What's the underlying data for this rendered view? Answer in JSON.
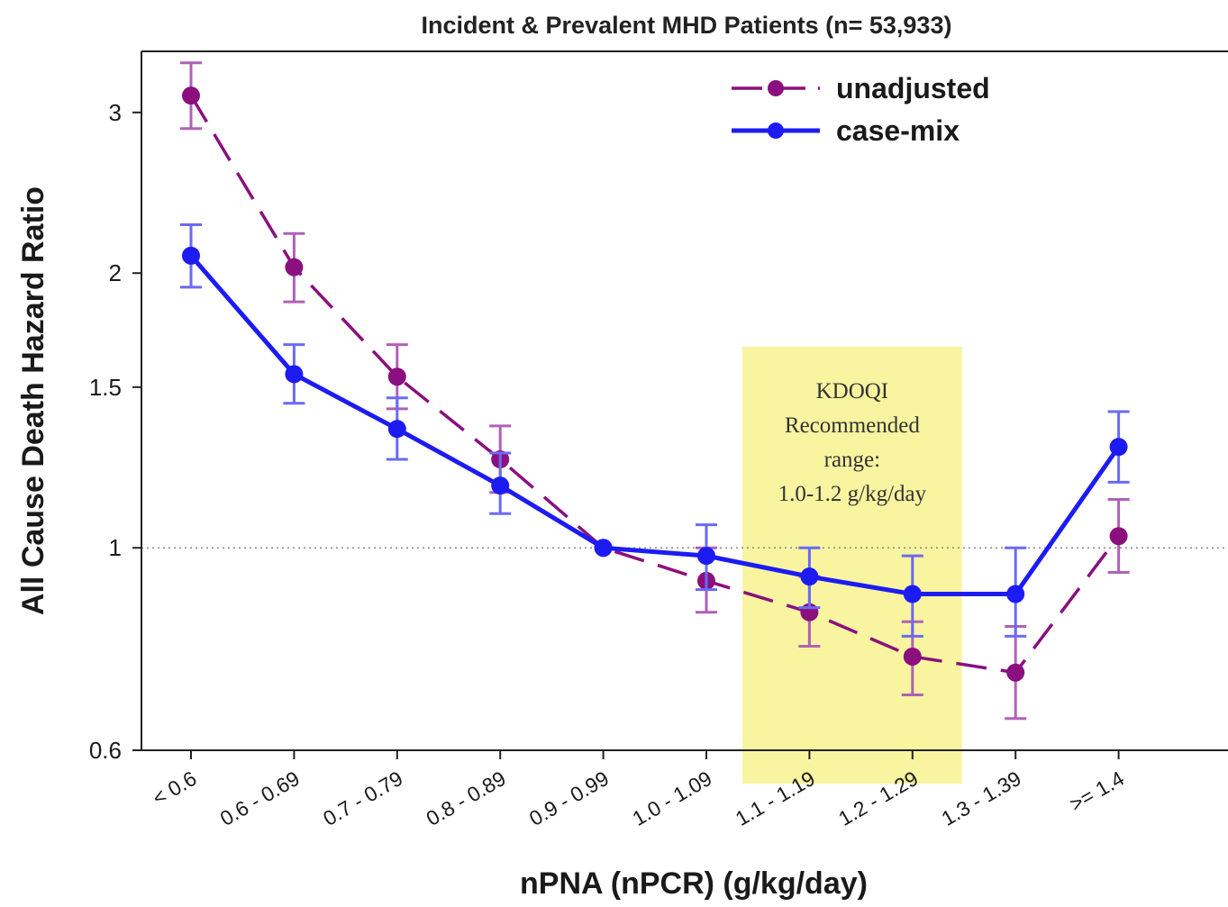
{
  "chart_data": {
    "type": "line",
    "title": "Incident & Prevalent MHD Patients (n= 53,933)",
    "xlabel": "nPNA (nPCR) (g/kg/day)",
    "ylabel": "All Cause Death Hazard Ratio",
    "y_scale": "log",
    "ylim": [
      0.6,
      3.5
    ],
    "yticks": [
      "0.6",
      "1",
      "1.5",
      "2",
      "3"
    ],
    "reference_line": 1,
    "categories": [
      "< 0.6",
      "0.6 - 0.69",
      "0.7 - 0.79",
      "0.8 - 0.89",
      "0.9 - 0.99",
      "1.0 - 1.09",
      "1.1 - 1.19",
      "1.2 - 1.29",
      "1.3 - 1.39",
      ">= 1.4"
    ],
    "series": [
      {
        "name": "unadjusted",
        "color": "#8b0f7e",
        "error_color": "#b060b8",
        "style": "dashed",
        "values": [
          3.13,
          2.03,
          1.54,
          1.25,
          1.0,
          0.92,
          0.85,
          0.76,
          0.73,
          1.03
        ],
        "lower": [
          2.88,
          1.86,
          1.42,
          1.15,
          1.0,
          0.85,
          0.78,
          0.69,
          0.65,
          0.94
        ],
        "upper": [
          3.4,
          2.21,
          1.67,
          1.36,
          1.0,
          1.0,
          0.93,
          0.83,
          0.82,
          1.13
        ]
      },
      {
        "name": "case-mix",
        "color": "#1c1cf2",
        "error_color": "#6a6af5",
        "style": "solid",
        "values": [
          2.09,
          1.55,
          1.35,
          1.17,
          1.0,
          0.98,
          0.93,
          0.89,
          0.89,
          1.29
        ],
        "lower": [
          1.93,
          1.44,
          1.25,
          1.09,
          1.0,
          0.9,
          0.86,
          0.8,
          0.8,
          1.18
        ],
        "upper": [
          2.26,
          1.67,
          1.46,
          1.27,
          1.0,
          1.06,
          1.0,
          0.98,
          1.0,
          1.41
        ]
      }
    ],
    "legend_position": "top-right",
    "highlight": {
      "from_category": "1.0 - 1.09",
      "to_category": "1.2 - 1.29",
      "color": "#f8f4a0",
      "text_lines": [
        "KDOQI",
        "Recommended",
        "range:",
        "1.0-1.2  g/kg/day"
      ]
    }
  }
}
